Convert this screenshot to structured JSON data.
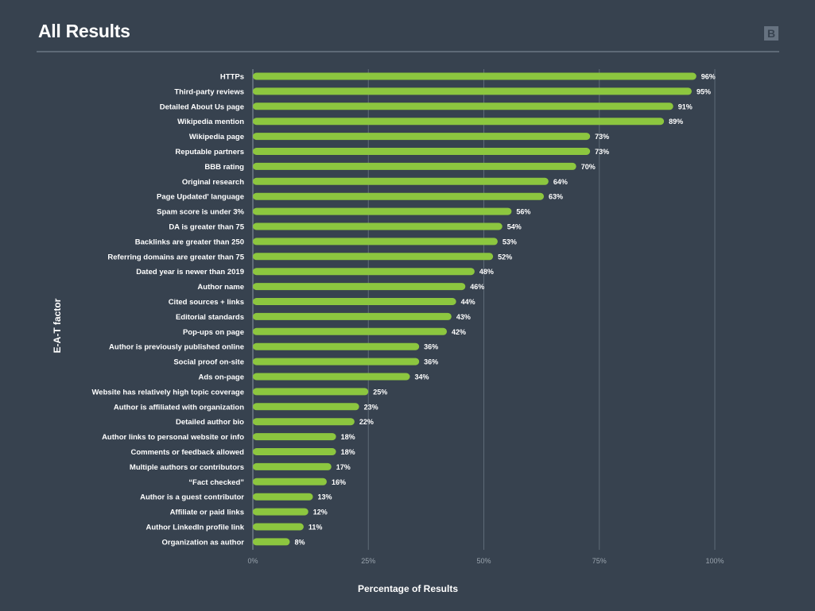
{
  "title": "All Results",
  "logo_text": "B",
  "colors": {
    "background": "#37424f",
    "bar": "#8cc63f",
    "grid": "#5e6a77",
    "tick": "#9aa4ae"
  },
  "chart_data": {
    "type": "bar",
    "orientation": "horizontal",
    "title": "All Results",
    "xlabel": "Percentage of Results",
    "ylabel": "E-A-T factor",
    "xlim": [
      0,
      100
    ],
    "x_ticks": [
      0,
      25,
      50,
      75,
      100
    ],
    "x_tick_labels": [
      "0%",
      "25%",
      "50%",
      "75%",
      "100%"
    ],
    "grid": true,
    "categories": [
      "HTTPs",
      "Third-party reviews",
      "Detailed About Us page",
      "Wikipedia mention",
      "Wikipedia page",
      "Reputable partners",
      "BBB rating",
      "Original research",
      "Page Updated' language",
      "Spam score is under 3%",
      "DA is greater than 75",
      "Backlinks are greater than 250",
      "Referring domains are greater than 75",
      "Dated year is newer than 2019",
      "Author name",
      "Cited sources + links",
      "Editorial standards",
      "Pop-ups on page",
      "Author is previously published online",
      "Social proof on-site",
      "Ads on-page",
      "Website has relatively high topic coverage",
      "Author is affiliated with organization",
      "Detailed author bio",
      "Author links to personal website or info",
      "Comments or feedback allowed",
      "Multiple authors or contributors",
      "“Fact checked”",
      "Author is a guest contributor",
      "Affiliate or paid links",
      "Author LinkedIn profile link",
      "Organization as author"
    ],
    "values": [
      96,
      95,
      91,
      89,
      73,
      73,
      70,
      64,
      63,
      56,
      54,
      53,
      52,
      48,
      46,
      44,
      43,
      42,
      36,
      36,
      34,
      25,
      23,
      22,
      18,
      18,
      17,
      16,
      13,
      12,
      11,
      8
    ],
    "value_labels": [
      "96%",
      "95%",
      "91%",
      "89%",
      "73%",
      "73%",
      "70%",
      "64%",
      "63%",
      "56%",
      "54%",
      "53%",
      "52%",
      "48%",
      "46%",
      "44%",
      "43%",
      "42%",
      "36%",
      "36%",
      "34%",
      "25%",
      "23%",
      "22%",
      "18%",
      "18%",
      "17%",
      "16%",
      "13%",
      "12%",
      "11%",
      "8%"
    ]
  }
}
